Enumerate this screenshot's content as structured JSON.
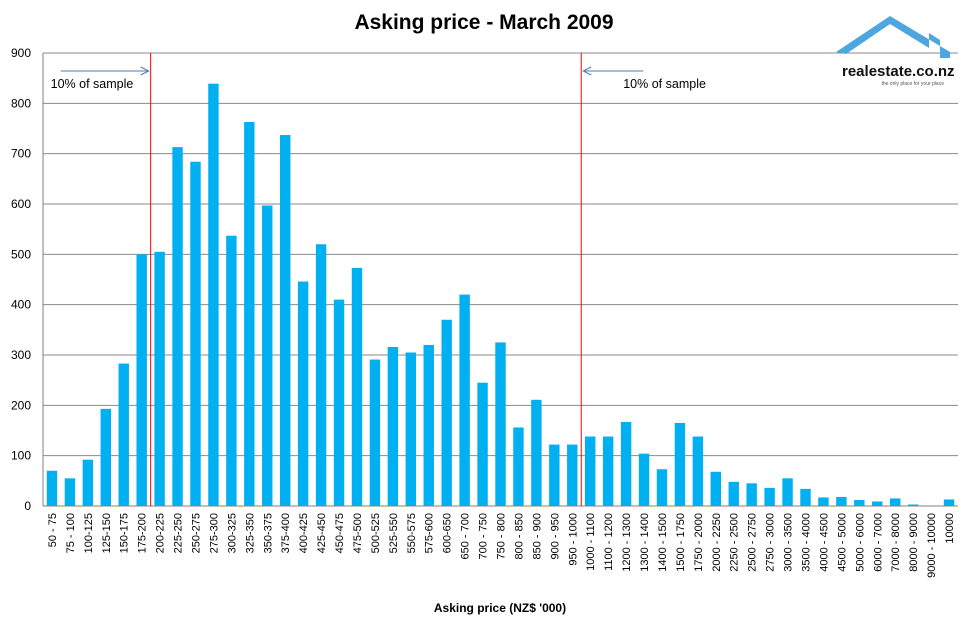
{
  "logo": {
    "text": "realestate.co.nz",
    "tagline": "the only place for your place",
    "color": "#4da6e0"
  },
  "chart_data": {
    "type": "bar",
    "title": "Asking price - March 2009",
    "xlabel": "Asking price (NZ$ '000)",
    "ylabel": "",
    "ylim": [
      0,
      900
    ],
    "yticks": [
      0,
      100,
      200,
      300,
      400,
      500,
      600,
      700,
      800,
      900
    ],
    "grid": true,
    "bar_color": "#00b0f0",
    "categories": [
      "50 - 75",
      "75 - 100",
      "100-125",
      "125-150",
      "150-175",
      "175-200",
      "200-225",
      "225-250",
      "250-275",
      "275-300",
      "300-325",
      "325-350",
      "350-375",
      "375-400",
      "400-425",
      "425-450",
      "450-475",
      "475-500",
      "500-525",
      "525-550",
      "550-575",
      "575-600",
      "600-650",
      "650 - 700",
      "700 - 750",
      "750 - 800",
      "800 - 850",
      "850 - 900",
      "900 - 950",
      "950 - 1000",
      "1000 - 1100",
      "1100 - 1200",
      "1200 - 1300",
      "1300 - 1400",
      "1400 - 1500",
      "1500 - 1750",
      "1750 - 2000",
      "2000 - 2250",
      "2250 - 2500",
      "2500 - 2750",
      "2750 - 3000",
      "3000 - 3500",
      "3500 - 4000",
      "4000 - 4500",
      "4500 - 5000",
      "5000 - 6000",
      "6000 - 7000",
      "7000 - 8000",
      "8000 - 9000",
      "9000 - 10000",
      "10000"
    ],
    "values": [
      70,
      55,
      92,
      193,
      283,
      500,
      505,
      713,
      684,
      839,
      537,
      763,
      597,
      737,
      446,
      520,
      410,
      473,
      291,
      316,
      305,
      320,
      370,
      420,
      245,
      325,
      156,
      211,
      122,
      122,
      138,
      138,
      167,
      104,
      73,
      165,
      138,
      68,
      48,
      45,
      36,
      55,
      34,
      17,
      18,
      12,
      9,
      15,
      3,
      0,
      13
    ],
    "annotations": [
      {
        "text": "10% of sample",
        "after_category": "175-200",
        "arrow": "right"
      },
      {
        "text": "10% of sample",
        "after_category": "950 - 1000",
        "arrow": "left"
      }
    ],
    "reference_line_color": "#ff0000"
  }
}
